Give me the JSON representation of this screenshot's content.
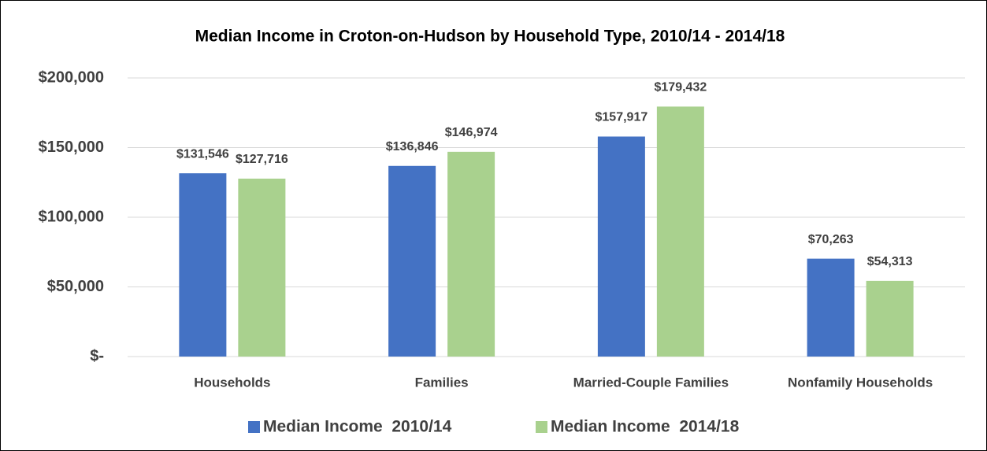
{
  "chart_data": {
    "type": "bar",
    "title": "Median Income in Croton-on-Hudson by Household Type, 2010/14 - 2014/18",
    "categories": [
      "Households",
      "Families",
      "Married-Couple Families",
      "Nonfamily Households"
    ],
    "series": [
      {
        "name": "Median Income  2010/14",
        "color": "#4472c4",
        "values": [
          131546,
          136846,
          157917,
          70263
        ],
        "value_labels": [
          "$131,546",
          "$136,846",
          "$157,917",
          "$70,263"
        ]
      },
      {
        "name": "Median Income  2014/18",
        "color": "#a9d18e",
        "values": [
          127716,
          146974,
          179432,
          54313
        ],
        "value_labels": [
          "$127,716",
          "$146,974",
          "$179,432",
          "$54,313"
        ]
      }
    ],
    "ylim": [
      0,
      200000
    ],
    "yticks": [
      {
        "value": 0,
        "label": "$-"
      },
      {
        "value": 50000,
        "label": "$50,000"
      },
      {
        "value": 100000,
        "label": "$100,000"
      },
      {
        "value": 150000,
        "label": "$150,000"
      },
      {
        "value": 200000,
        "label": "$200,000"
      }
    ],
    "grid": true,
    "legend": "bottom"
  }
}
